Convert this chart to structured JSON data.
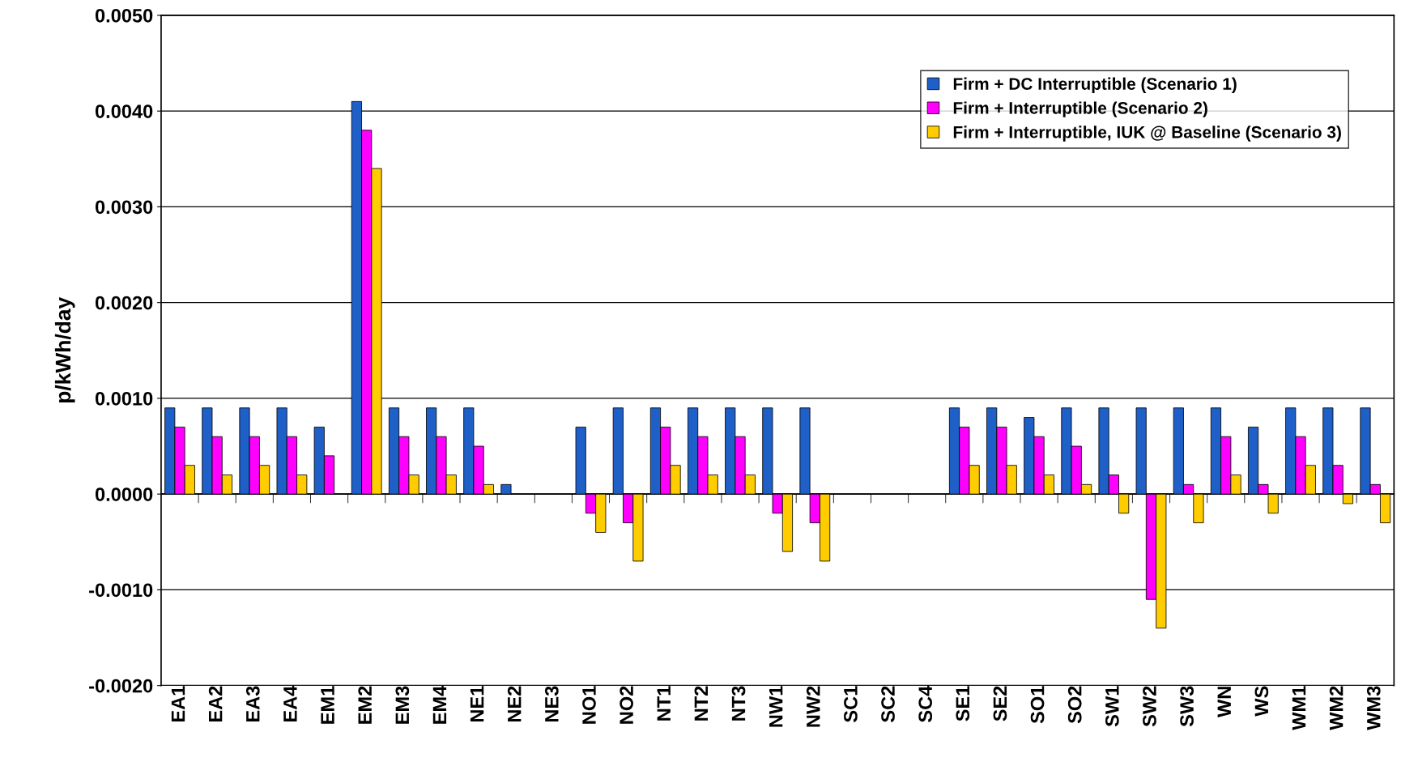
{
  "chart_data": {
    "type": "bar",
    "ylabel": "p/kWh/day",
    "categories": [
      "EA1",
      "EA2",
      "EA3",
      "EA4",
      "EM1",
      "EM2",
      "EM3",
      "EM4",
      "NE1",
      "NE2",
      "NE3",
      "NO1",
      "NO2",
      "NT1",
      "NT2",
      "NT3",
      "NW1",
      "NW2",
      "SC1",
      "SC2",
      "SC4",
      "SE1",
      "SE2",
      "SO1",
      "SO2",
      "SW1",
      "SW2",
      "SW3",
      "WN",
      "WS",
      "WM1",
      "WM2",
      "WM3"
    ],
    "series": [
      {
        "name": "Firm + DC Interruptible (Scenario 1)",
        "color": "#1f5fc8",
        "values": [
          0.0009,
          0.0009,
          0.0009,
          0.0009,
          0.0007,
          0.0041,
          0.0009,
          0.0009,
          0.0009,
          0.0001,
          0,
          0.0007,
          0.0009,
          0.0009,
          0.0009,
          0.0009,
          0.0009,
          0.0009,
          0,
          0,
          0,
          0.0009,
          0.0009,
          0.0008,
          0.0009,
          0.0009,
          0.0009,
          0.0009,
          0.0009,
          0.0007,
          0.0009,
          0.0009,
          0.0009
        ]
      },
      {
        "name": "Firm + Interruptible (Scenario 2)",
        "color": "#ff00ff",
        "values": [
          0.0007,
          0.0006,
          0.0006,
          0.0006,
          0.0004,
          0.0038,
          0.0006,
          0.0006,
          0.0005,
          0,
          0,
          -0.0002,
          -0.0003,
          0.0007,
          0.0006,
          0.0006,
          -0.0002,
          -0.0003,
          0,
          0,
          0,
          0.0007,
          0.0007,
          0.0006,
          0.0005,
          0.0002,
          -0.0011,
          0.0001,
          0.0006,
          0.0001,
          0.0006,
          0.0003,
          0.0001
        ]
      },
      {
        "name": "Firm + Interruptible, IUK @ Baseline (Scenario 3)",
        "color": "#ffcc00",
        "values": [
          0.0003,
          0.0002,
          0.0003,
          0.0002,
          0,
          0.0034,
          0.0002,
          0.0002,
          0.0001,
          0,
          0,
          -0.0004,
          -0.0007,
          0.0003,
          0.0002,
          0.0002,
          -0.0006,
          -0.0007,
          0,
          0,
          0,
          0.0003,
          0.0003,
          0.0002,
          0.0001,
          -0.0002,
          -0.0014,
          -0.0003,
          0.0002,
          -0.0002,
          0.0003,
          -0.0001,
          -0.0003
        ]
      }
    ],
    "ylim": [
      -0.002,
      0.005
    ],
    "yticks": [
      {
        "value": -0.002,
        "label": "-0.0020"
      },
      {
        "value": -0.001,
        "label": "-0.0010"
      },
      {
        "value": 0,
        "label": "0.0000"
      },
      {
        "value": 0.001,
        "label": "0.0010"
      },
      {
        "value": 0.002,
        "label": "0.0020"
      },
      {
        "value": 0.003,
        "label": "0.0030"
      },
      {
        "value": 0.004,
        "label": "0.0040"
      },
      {
        "value": 0.005,
        "label": "0.0050"
      }
    ],
    "grid": "y",
    "legend": "top right"
  }
}
